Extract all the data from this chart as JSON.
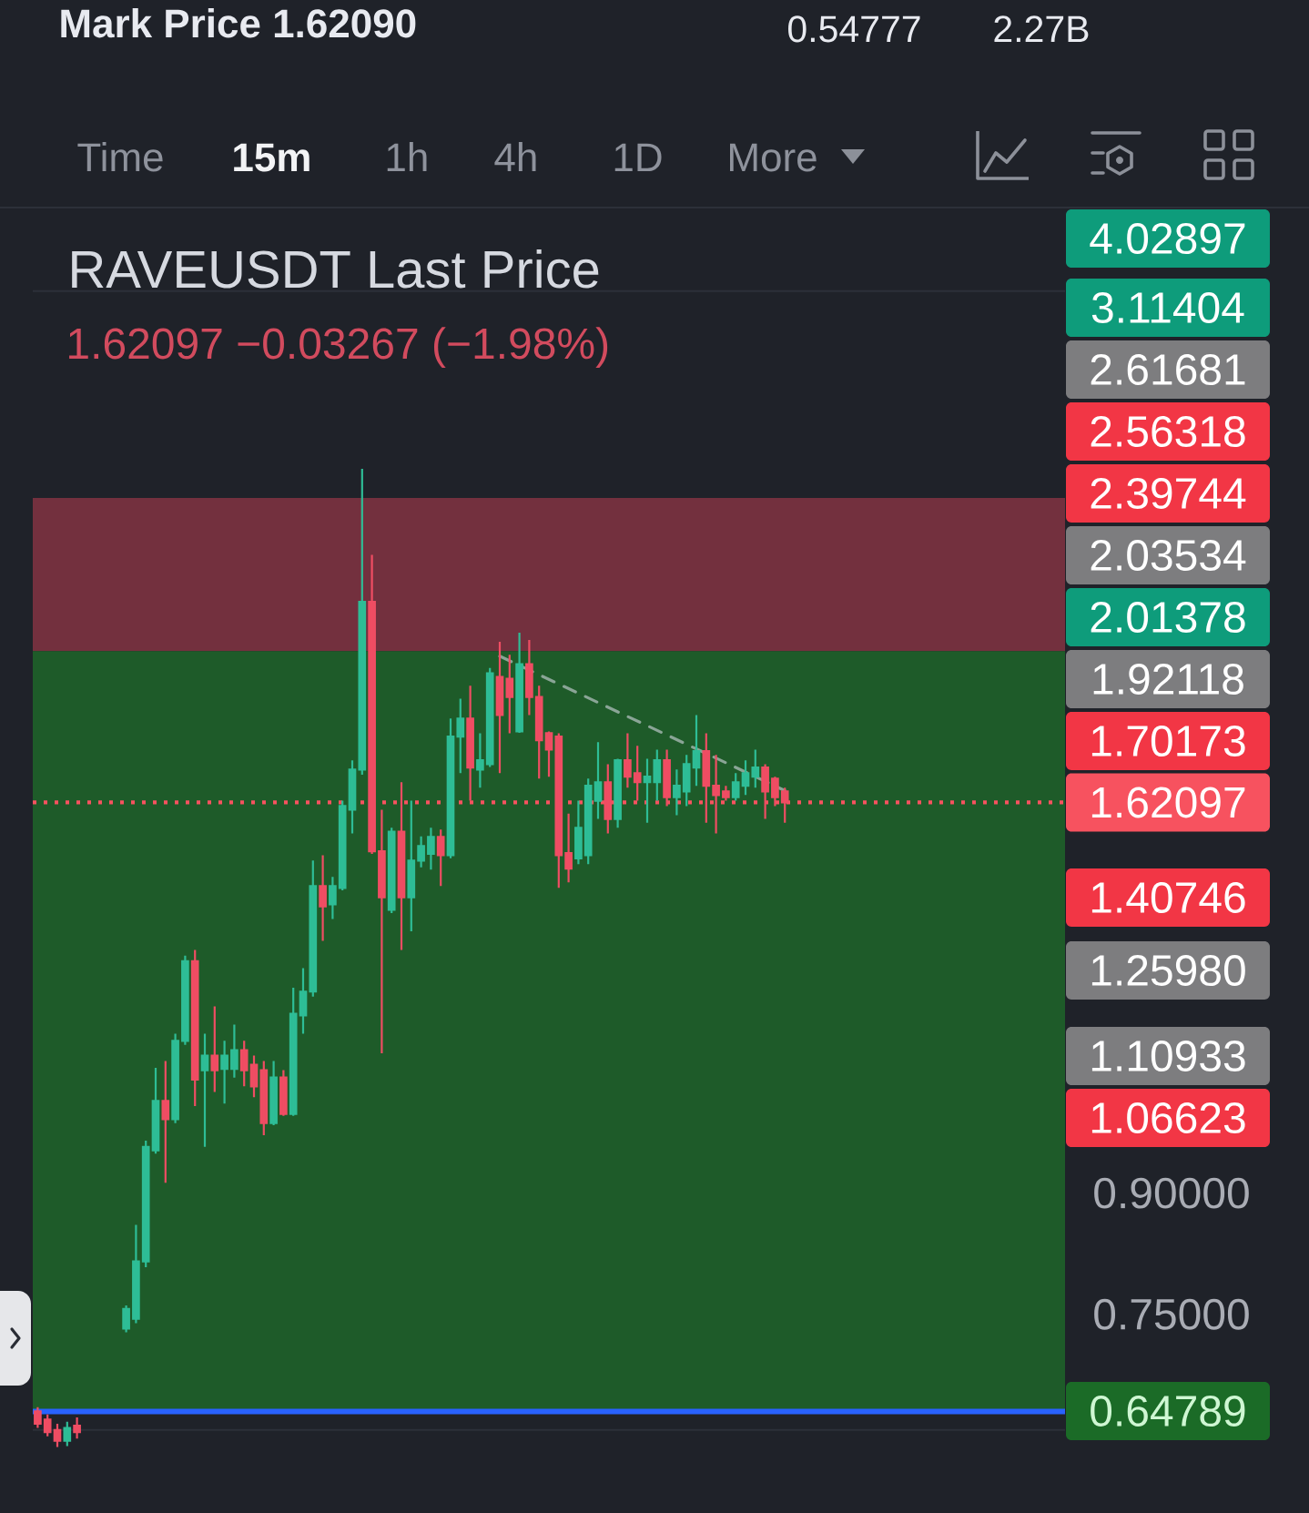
{
  "chart_data": {
    "type": "candlestick",
    "title": "RAVEUSDT Last Price",
    "subtitle": "1.62097 −0.03267 (−1.98%)",
    "annotations": [
      "Mark Price 1.62090",
      "0.54777",
      "2.27B",
      "Time",
      "15m",
      "1h",
      "4h",
      "1D",
      "More",
      "4.02897",
      "3.11404",
      "2.61681",
      "2.56318",
      "2.39744",
      "2.03534",
      "2.01378",
      "1.92118",
      "1.70173",
      "1.40746",
      "1.25980",
      "1.10933",
      "1.06623",
      "0.64789"
    ],
    "categories": [
      null,
      null,
      null,
      null,
      null,
      null,
      null,
      null,
      null,
      null,
      null,
      null,
      null,
      null,
      null,
      null,
      null,
      null,
      null,
      null,
      null,
      null,
      null,
      null,
      null,
      null,
      null,
      null,
      null,
      null,
      null,
      null,
      null,
      null,
      null,
      null,
      null,
      null,
      null,
      null,
      null,
      null,
      null,
      null,
      null,
      null,
      null,
      null,
      null,
      null,
      null,
      null,
      null,
      null,
      null,
      null,
      null,
      null,
      null,
      null,
      null,
      null,
      null,
      null,
      null,
      null,
      null,
      null,
      null,
      null,
      null,
      null,
      null,
      null,
      null,
      null,
      null,
      null,
      null,
      null,
      null,
      null,
      null,
      null,
      null,
      null,
      null,
      null,
      null,
      null,
      null,
      null,
      null,
      null,
      null,
      null,
      null,
      null,
      null,
      null,
      null,
      null,
      null,
      null,
      null
    ],
    "ohlc": [
      [
        0.648,
        0.652,
        0.632,
        0.636
      ],
      [
        0.64,
        0.645,
        0.624,
        0.628
      ],
      [
        0.63,
        0.636,
        0.614,
        0.62
      ],
      [
        0.62,
        0.638,
        0.615,
        0.632
      ],
      [
        0.634,
        0.642,
        0.622,
        0.628
      ],
      null,
      null,
      null,
      null,
      [
        0.734,
        0.76,
        0.73,
        0.756
      ],
      [
        0.745,
        0.858,
        0.74,
        0.812
      ],
      [
        0.812,
        0.974,
        0.805,
        0.965
      ],
      [
        0.96,
        1.087,
        0.955,
        1.034
      ],
      [
        1.034,
        1.098,
        0.914,
        1.006
      ],
      [
        1.006,
        1.144,
        1.0,
        1.132
      ],
      [
        1.132,
        1.287,
        1.125,
        1.276
      ],
      [
        1.276,
        1.298,
        1.026,
        1.068
      ],
      [
        1.083,
        1.144,
        0.965,
        1.107
      ],
      [
        1.107,
        1.192,
        1.048,
        1.083
      ],
      [
        1.085,
        1.132,
        1.03,
        1.107
      ],
      [
        1.085,
        1.16,
        1.071,
        1.116
      ],
      [
        1.116,
        1.132,
        1.057,
        1.083
      ],
      [
        1.092,
        1.107,
        1.04,
        1.057
      ],
      [
        1.083,
        1.098,
        0.982,
        1.0
      ],
      [
        1.0,
        1.098,
        0.997,
        1.071
      ],
      [
        1.071,
        1.083,
        1.011,
        1.014
      ],
      [
        1.014,
        1.226,
        1.011,
        1.179
      ],
      [
        1.176,
        1.263,
        1.144,
        1.219
      ],
      [
        1.219,
        1.485,
        1.21,
        1.429
      ],
      [
        1.429,
        1.497,
        1.316,
        1.386
      ],
      [
        1.39,
        1.449,
        1.36,
        1.429
      ],
      [
        1.425,
        1.625,
        1.42,
        1.612
      ],
      [
        1.603,
        1.727,
        1.547,
        1.703
      ],
      [
        1.703,
        2.678,
        1.69,
        2.192
      ],
      [
        2.192,
        2.353,
        1.5,
        1.506
      ],
      [
        1.506,
        1.603,
        1.111,
        1.405
      ],
      [
        1.379,
        1.56,
        1.372,
        1.551
      ],
      [
        1.551,
        1.671,
        1.298,
        1.405
      ],
      [
        1.405,
        1.625,
        1.335,
        1.485
      ],
      [
        1.485,
        1.54,
        1.47,
        1.518
      ],
      [
        1.5,
        1.56,
        1.465,
        1.539
      ],
      [
        1.539,
        1.556,
        1.429,
        1.497
      ],
      [
        1.497,
        1.839,
        1.49,
        1.79
      ],
      [
        1.79,
        1.895,
        1.694,
        1.839
      ],
      [
        1.839,
        1.932,
        1.625,
        1.708
      ],
      [
        1.703,
        1.799,
        1.657,
        1.727
      ],
      [
        1.717,
        1.985,
        1.71,
        1.969
      ],
      [
        1.958,
        2.064,
        1.694,
        1.849
      ],
      [
        1.953,
        2.024,
        1.799,
        1.9
      ],
      [
        1.804,
        2.093,
        1.8,
        1.996
      ],
      [
        1.996,
        2.07,
        1.849,
        1.9
      ],
      [
        1.9,
        1.932,
        1.68,
        1.78
      ],
      [
        1.799,
        1.804,
        1.685,
        1.755
      ],
      [
        1.79,
        1.799,
        1.425,
        1.497
      ],
      [
        1.502,
        1.594,
        1.437,
        1.467
      ],
      [
        1.49,
        1.625,
        1.477,
        1.56
      ],
      [
        1.497,
        1.68,
        1.477,
        1.662
      ],
      [
        1.625,
        1.775,
        1.581,
        1.671
      ],
      [
        1.671,
        1.717,
        1.547,
        1.581
      ],
      [
        1.581,
        1.731,
        1.56,
        1.727
      ],
      [
        1.727,
        1.799,
        1.657,
        1.685
      ],
      [
        1.694,
        1.765,
        1.625,
        1.671
      ],
      [
        1.671,
        1.731,
        1.572,
        1.685
      ],
      [
        1.671,
        1.755,
        1.625,
        1.727
      ],
      [
        1.727,
        1.755,
        1.612,
        1.634
      ],
      [
        1.634,
        1.703,
        1.59,
        1.662
      ],
      [
        1.648,
        1.741,
        1.612,
        1.717
      ],
      [
        1.708,
        1.849,
        1.662,
        1.751
      ],
      [
        1.751,
        1.799,
        1.572,
        1.662
      ],
      [
        1.662,
        1.741,
        1.547,
        1.639
      ],
      [
        1.648,
        1.662,
        1.625,
        1.634
      ],
      [
        1.634,
        1.694,
        1.625,
        1.671
      ],
      [
        1.662,
        1.727,
        1.639,
        1.694
      ],
      [
        1.685,
        1.755,
        1.657,
        1.708
      ],
      [
        1.708,
        1.717,
        1.581,
        1.648
      ],
      [
        1.68,
        1.685,
        1.612,
        1.634
      ],
      [
        1.648,
        1.657,
        1.572,
        1.621
      ],
      null,
      null,
      null,
      null,
      null,
      null,
      null,
      null,
      null,
      null,
      null,
      null,
      null,
      null,
      null,
      null,
      null,
      null,
      null,
      null,
      null,
      null,
      null,
      null,
      null,
      null,
      null,
      null
    ],
    "series": [
      {
        "type": "line",
        "color": "#8aa596",
        "line_style": "dashed",
        "values": [
          null,
          null,
          null,
          null,
          null,
          null,
          null,
          null,
          null,
          null,
          null,
          null,
          null,
          null,
          null,
          null,
          null,
          null,
          null,
          null,
          null,
          null,
          null,
          null,
          null,
          null,
          null,
          null,
          null,
          null,
          null,
          null,
          null,
          null,
          null,
          null,
          null,
          null,
          null,
          null,
          null,
          null,
          null,
          null,
          null,
          null,
          null,
          2.02,
          null,
          null,
          null,
          null,
          null,
          null,
          null,
          null,
          null,
          null,
          null,
          null,
          null,
          null,
          null,
          null,
          null,
          null,
          null,
          null,
          null,
          null,
          null,
          null,
          null,
          null,
          null,
          null,
          1.65,
          null,
          null,
          null,
          null,
          null,
          null,
          null,
          null,
          null,
          null,
          null,
          null,
          null,
          null,
          null,
          null,
          null,
          null,
          null,
          null,
          null,
          null,
          null,
          null,
          null,
          null,
          null,
          null
        ]
      }
    ],
    "bands": [
      {
        "axis": "y",
        "from": 2.03534,
        "to": 2.56318,
        "color": "#73303e"
      },
      {
        "axis": "y",
        "from": 0.64789,
        "to": 2.03534,
        "color": "#1e5b29"
      }
    ],
    "ref_lines": [
      {
        "axis": "y",
        "value": 1.62097,
        "label": "1.62097",
        "color": "#f7525f",
        "line_style": "dotted"
      },
      {
        "axis": "y",
        "value": 0.64789,
        "color": "#2962ff"
      }
    ],
    "ylim": [
      0.556,
      3.97
    ],
    "yticks": [
      {
        "value": 0.63,
        "label": null
      },
      {
        "value": 0.75,
        "label": "0.75000"
      },
      {
        "value": 0.9,
        "label": "0.90000"
      },
      {
        "value": 1.1,
        "label": null
      },
      {
        "value": 1.4,
        "label": null
      },
      {
        "value": 1.7,
        "label": null
      },
      {
        "value": 2.1,
        "label": null
      },
      {
        "value": 2.5,
        "label": null
      },
      {
        "value": 3.5,
        "label": null
      }
    ],
    "log": true,
    "grid": "y",
    "tick_labels": "y"
  }
}
